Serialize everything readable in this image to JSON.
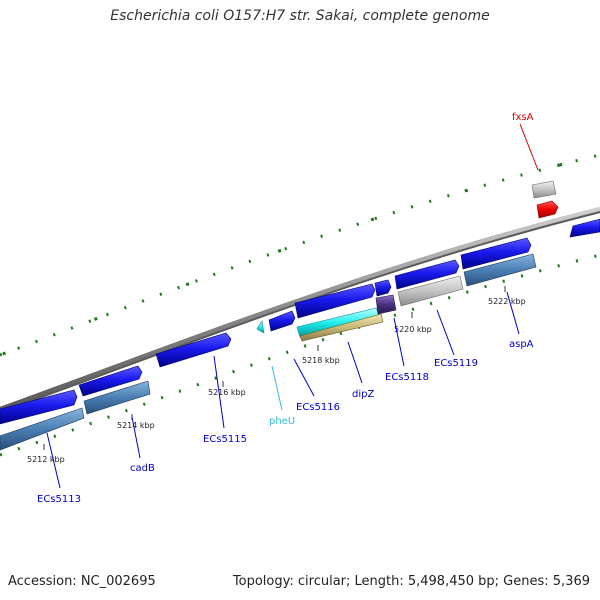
{
  "title": "Escherichia coli O157:H7 str. Sakai, complete genome",
  "footer": {
    "accession": "Accession: NC_002695",
    "summary": "Topology: circular; Length: 5,498,450 bp; Genes: 5,369"
  },
  "ticks": [
    "5212 kbp",
    "5214 kbp",
    "5216 kbp",
    "5218 kbp",
    "5220 kbp",
    "5222 kbp"
  ],
  "genes": [
    {
      "name": "ECs5113",
      "color": "#0000cc"
    },
    {
      "name": "cadB",
      "color": "#0000cc"
    },
    {
      "name": "ECs5115",
      "color": "#0000cc"
    },
    {
      "name": "pheU",
      "color": "#33bbdd"
    },
    {
      "name": "ECs5116",
      "color": "#0000cc"
    },
    {
      "name": "dipZ",
      "color": "#0000cc"
    },
    {
      "name": "ECs5118",
      "color": "#0000cc"
    },
    {
      "name": "ECs5119",
      "color": "#0000cc"
    },
    {
      "name": "aspA",
      "color": "#0000cc"
    },
    {
      "name": "fxsA",
      "color": "#dd0000"
    }
  ],
  "colors": {
    "backbone": "#888888",
    "cds_forward": "#1a1aee",
    "cds_reverse": "#4a7fb5",
    "trna": "#33ccee",
    "gray_feature": "#c8c8c8",
    "tick_mark": "#1a7a1a",
    "highlight": "#ee0000"
  }
}
